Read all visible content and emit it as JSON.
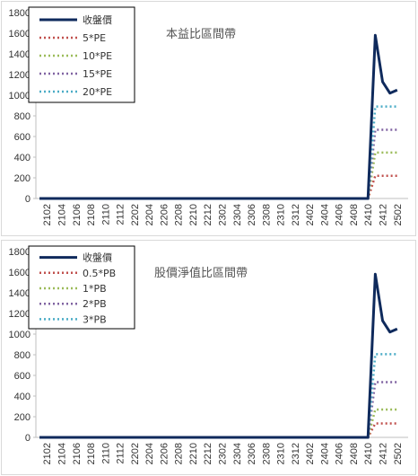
{
  "chart_data": [
    {
      "type": "line",
      "title": "本益比區間帶",
      "legend_position": "top-left",
      "ylim": [
        0,
        1800
      ],
      "yticks": [
        0,
        200,
        400,
        600,
        800,
        1000,
        1200,
        1400,
        1600,
        1800
      ],
      "grid": false,
      "x_tick_labels": [
        "2102",
        "2104",
        "2106",
        "2108",
        "2110",
        "2112",
        "2202",
        "2204",
        "2206",
        "2208",
        "2210",
        "2212",
        "2302",
        "2304",
        "2306",
        "2308",
        "2310",
        "2312",
        "2402",
        "2404",
        "2406",
        "2408",
        "2410",
        "2412",
        "2502"
      ],
      "x_start": "2101",
      "x_count": 51,
      "series": [
        {
          "name": "收盤價",
          "color": "#0f2a5c",
          "style": "solid",
          "values": [
            0,
            0,
            0,
            0,
            0,
            0,
            0,
            0,
            0,
            0,
            0,
            0,
            0,
            0,
            0,
            0,
            0,
            0,
            0,
            0,
            0,
            0,
            0,
            0,
            0,
            0,
            0,
            0,
            0,
            0,
            0,
            0,
            0,
            0,
            0,
            0,
            0,
            0,
            0,
            0,
            0,
            0,
            0,
            0,
            0,
            0,
            1580,
            1130,
            1020,
            1050,
            null
          ]
        },
        {
          "name": "5*PE",
          "color": "#c0504d",
          "style": "dotted",
          "values": [
            0,
            0,
            0,
            0,
            0,
            0,
            0,
            0,
            0,
            0,
            0,
            0,
            0,
            0,
            0,
            0,
            0,
            0,
            0,
            0,
            0,
            0,
            0,
            0,
            0,
            0,
            0,
            0,
            0,
            0,
            0,
            0,
            0,
            0,
            0,
            0,
            0,
            0,
            0,
            0,
            0,
            0,
            0,
            0,
            0,
            0,
            220,
            220,
            220,
            220,
            null
          ]
        },
        {
          "name": "10*PE",
          "color": "#9bbb59",
          "style": "dotted",
          "values": [
            0,
            0,
            0,
            0,
            0,
            0,
            0,
            0,
            0,
            0,
            0,
            0,
            0,
            0,
            0,
            0,
            0,
            0,
            0,
            0,
            0,
            0,
            0,
            0,
            0,
            0,
            0,
            0,
            0,
            0,
            0,
            0,
            0,
            0,
            0,
            0,
            0,
            0,
            0,
            0,
            0,
            0,
            0,
            0,
            0,
            0,
            445,
            445,
            445,
            445,
            null
          ]
        },
        {
          "name": "15*PE",
          "color": "#8064a2",
          "style": "dotted",
          "values": [
            0,
            0,
            0,
            0,
            0,
            0,
            0,
            0,
            0,
            0,
            0,
            0,
            0,
            0,
            0,
            0,
            0,
            0,
            0,
            0,
            0,
            0,
            0,
            0,
            0,
            0,
            0,
            0,
            0,
            0,
            0,
            0,
            0,
            0,
            0,
            0,
            0,
            0,
            0,
            0,
            0,
            0,
            0,
            0,
            0,
            0,
            665,
            665,
            665,
            665,
            null
          ]
        },
        {
          "name": "20*PE",
          "color": "#4bacc6",
          "style": "dotted",
          "values": [
            0,
            0,
            0,
            0,
            0,
            0,
            0,
            0,
            0,
            0,
            0,
            0,
            0,
            0,
            0,
            0,
            0,
            0,
            0,
            0,
            0,
            0,
            0,
            0,
            0,
            0,
            0,
            0,
            0,
            0,
            0,
            0,
            0,
            0,
            0,
            0,
            0,
            0,
            0,
            0,
            0,
            0,
            0,
            0,
            0,
            0,
            890,
            890,
            890,
            890,
            null
          ]
        }
      ]
    },
    {
      "type": "line",
      "title": "股價淨值比區間帶",
      "legend_position": "top-left",
      "ylim": [
        0,
        1800
      ],
      "yticks": [
        0,
        200,
        400,
        600,
        800,
        1000,
        1200,
        1400,
        1600,
        1800
      ],
      "grid": false,
      "x_tick_labels": [
        "2102",
        "2104",
        "2106",
        "2108",
        "2110",
        "2112",
        "2202",
        "2204",
        "2206",
        "2208",
        "2210",
        "2212",
        "2302",
        "2304",
        "2306",
        "2308",
        "2310",
        "2312",
        "2402",
        "2404",
        "2406",
        "2408",
        "2410",
        "2412",
        "2502"
      ],
      "x_start": "2101",
      "x_count": 51,
      "series": [
        {
          "name": "收盤價",
          "color": "#0f2a5c",
          "style": "solid",
          "values": [
            0,
            0,
            0,
            0,
            0,
            0,
            0,
            0,
            0,
            0,
            0,
            0,
            0,
            0,
            0,
            0,
            0,
            0,
            0,
            0,
            0,
            0,
            0,
            0,
            0,
            0,
            0,
            0,
            0,
            0,
            0,
            0,
            0,
            0,
            0,
            0,
            0,
            0,
            0,
            0,
            0,
            0,
            0,
            0,
            0,
            0,
            1580,
            1130,
            1020,
            1050,
            null
          ]
        },
        {
          "name": "0.5*PB",
          "color": "#c0504d",
          "style": "dotted",
          "values": [
            0,
            0,
            0,
            0,
            0,
            0,
            0,
            0,
            0,
            0,
            0,
            0,
            0,
            0,
            0,
            0,
            0,
            0,
            0,
            0,
            0,
            0,
            0,
            0,
            0,
            0,
            0,
            0,
            0,
            0,
            0,
            0,
            0,
            0,
            0,
            0,
            0,
            0,
            0,
            0,
            0,
            0,
            0,
            0,
            0,
            0,
            135,
            135,
            135,
            135,
            null
          ]
        },
        {
          "name": "1*PB",
          "color": "#9bbb59",
          "style": "dotted",
          "values": [
            0,
            0,
            0,
            0,
            0,
            0,
            0,
            0,
            0,
            0,
            0,
            0,
            0,
            0,
            0,
            0,
            0,
            0,
            0,
            0,
            0,
            0,
            0,
            0,
            0,
            0,
            0,
            0,
            0,
            0,
            0,
            0,
            0,
            0,
            0,
            0,
            0,
            0,
            0,
            0,
            0,
            0,
            0,
            0,
            0,
            0,
            270,
            270,
            270,
            270,
            null
          ]
        },
        {
          "name": "2*PB",
          "color": "#8064a2",
          "style": "dotted",
          "values": [
            0,
            0,
            0,
            0,
            0,
            0,
            0,
            0,
            0,
            0,
            0,
            0,
            0,
            0,
            0,
            0,
            0,
            0,
            0,
            0,
            0,
            0,
            0,
            0,
            0,
            0,
            0,
            0,
            0,
            0,
            0,
            0,
            0,
            0,
            0,
            0,
            0,
            0,
            0,
            0,
            0,
            0,
            0,
            0,
            0,
            0,
            535,
            535,
            535,
            535,
            null
          ]
        },
        {
          "name": "3*PB",
          "color": "#4bacc6",
          "style": "dotted",
          "values": [
            0,
            0,
            0,
            0,
            0,
            0,
            0,
            0,
            0,
            0,
            0,
            0,
            0,
            0,
            0,
            0,
            0,
            0,
            0,
            0,
            0,
            0,
            0,
            0,
            0,
            0,
            0,
            0,
            0,
            0,
            0,
            0,
            0,
            0,
            0,
            0,
            0,
            0,
            0,
            0,
            0,
            0,
            0,
            0,
            0,
            0,
            805,
            805,
            805,
            805,
            null
          ]
        }
      ]
    }
  ]
}
